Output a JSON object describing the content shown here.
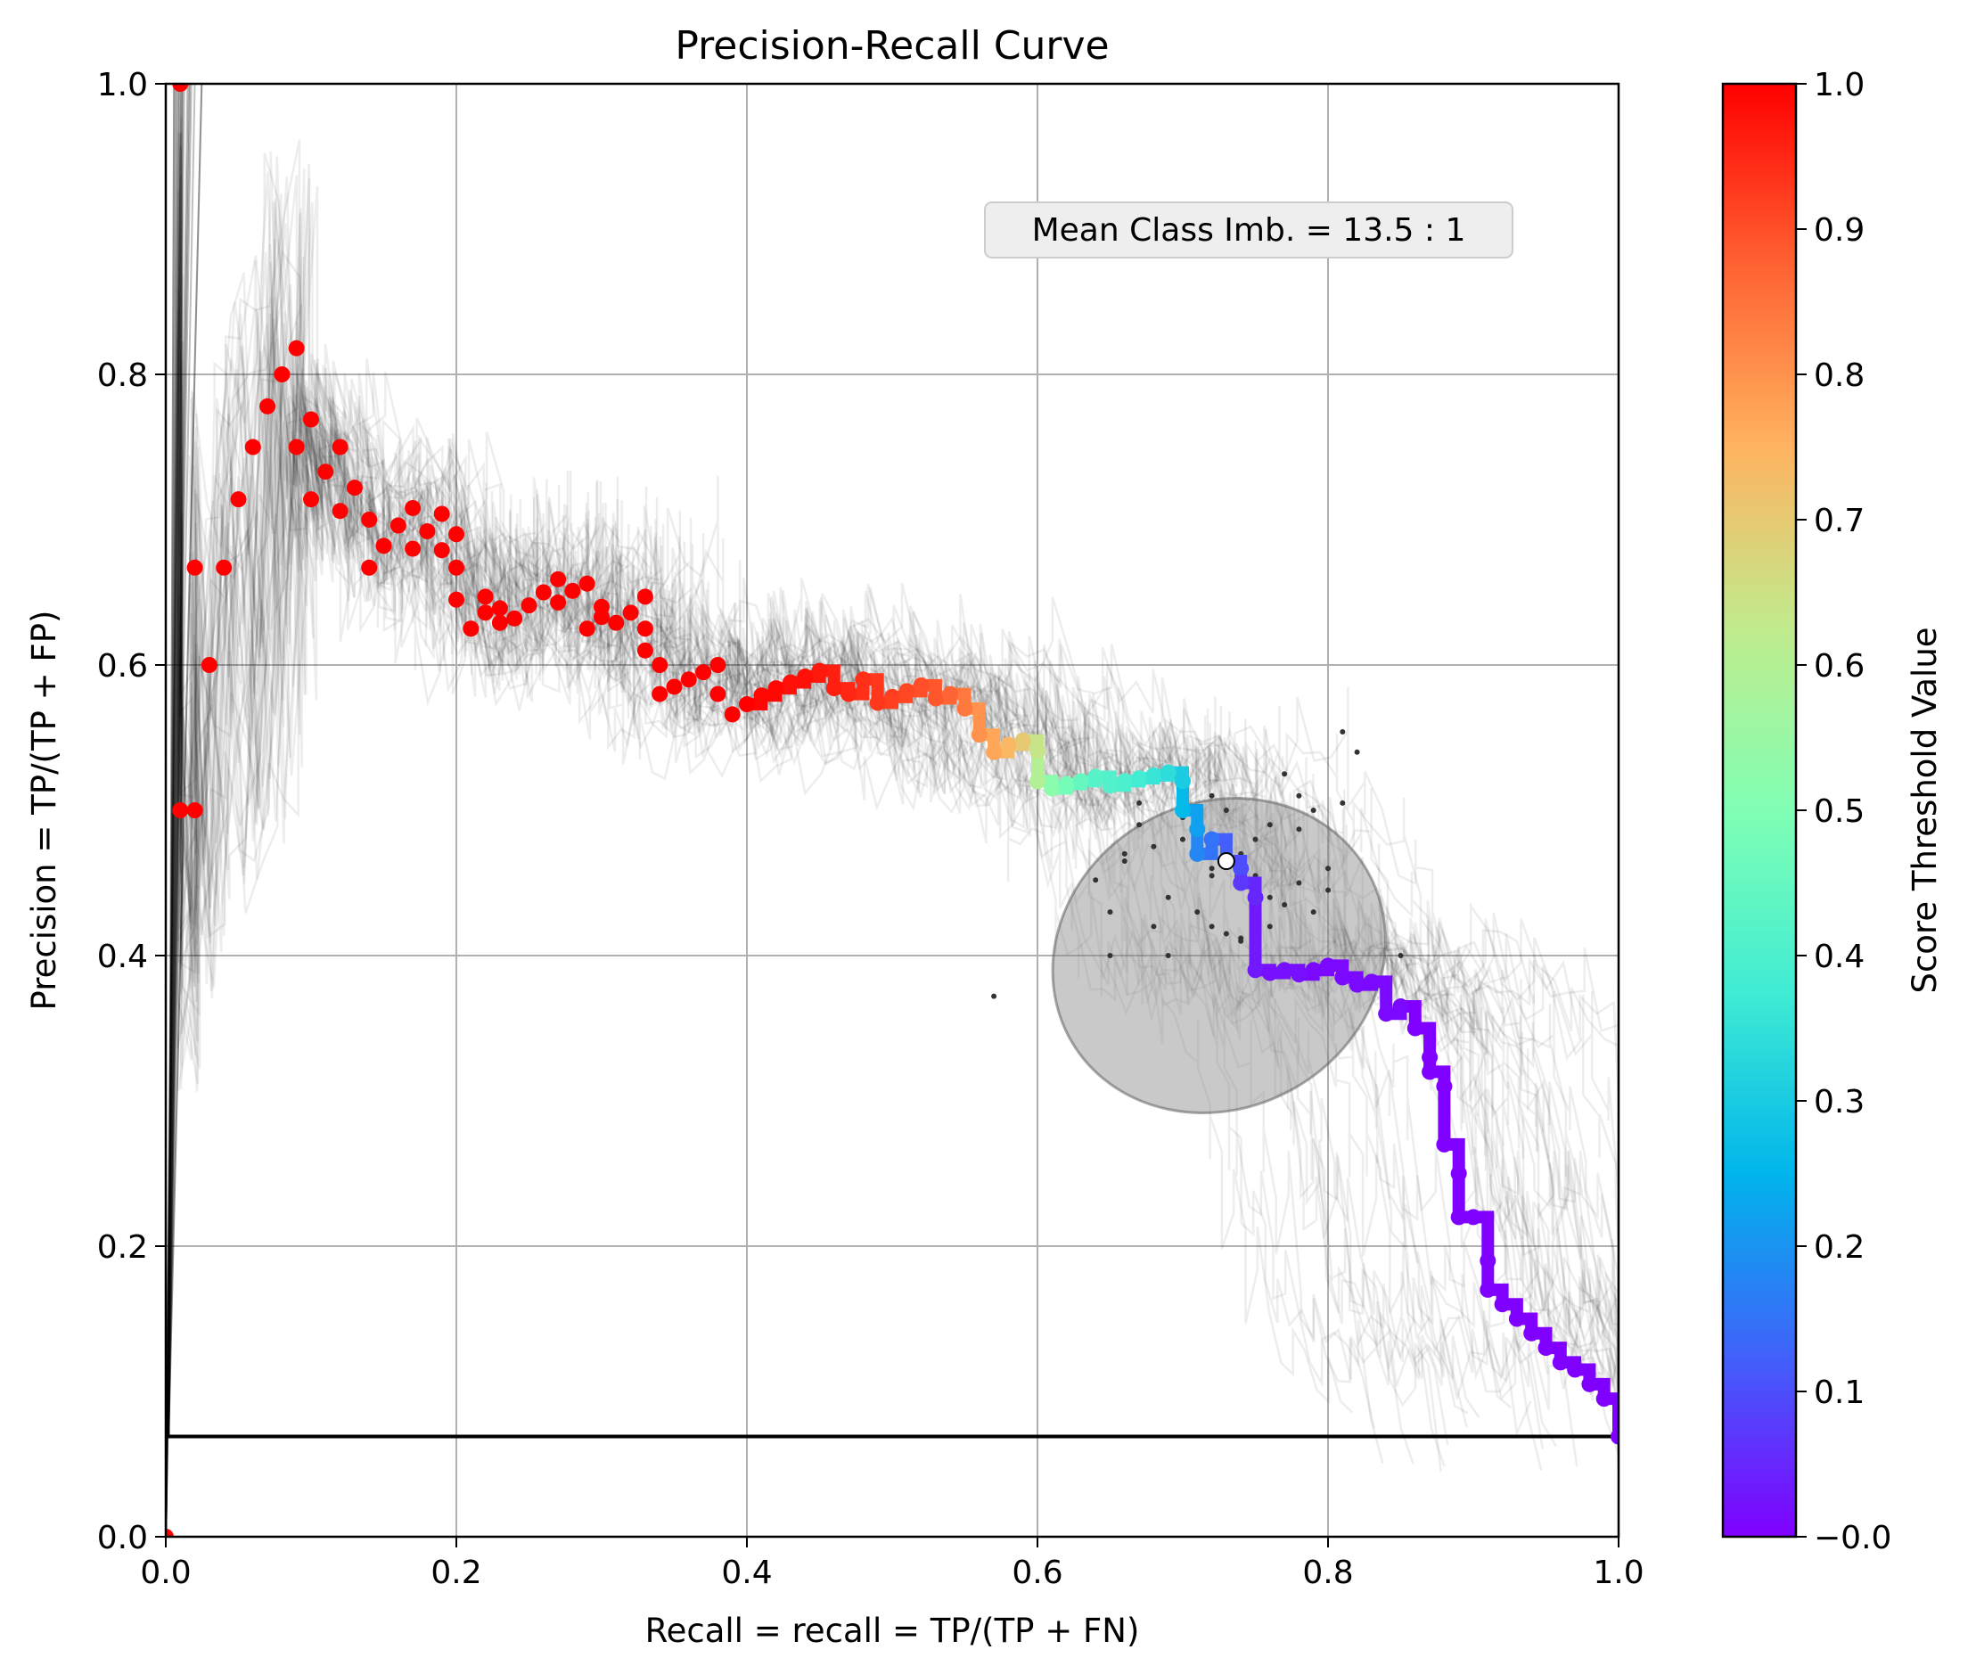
{
  "chart_data": {
    "type": "line",
    "title": "Precision-Recall Curve",
    "xlabel": "Recall = recall = TP/(TP + FN)",
    "ylabel": "Precision = TP/(TP + FP)",
    "xlim": [
      0.0,
      1.0
    ],
    "ylim": [
      0.0,
      1.0
    ],
    "grid": true,
    "x_ticks": [
      "0.0",
      "0.2",
      "0.4",
      "0.6",
      "0.8",
      "1.0"
    ],
    "y_ticks": [
      "0.0",
      "0.2",
      "0.4",
      "0.6",
      "0.8",
      "1.0"
    ],
    "annotation": "Mean Class Imb. = 13.5 : 1",
    "baseline_precision": 0.069,
    "colorbar": {
      "label": "Score Threshold Value",
      "colormap": "rainbow",
      "range": [
        0.0,
        1.0
      ],
      "ticks": [
        "−0.0",
        "0.1",
        "0.2",
        "0.3",
        "0.4",
        "0.5",
        "0.6",
        "0.7",
        "0.8",
        "0.9",
        "1.0"
      ],
      "colors": [
        "#8000ff",
        "#4062fa",
        "#00b5eb",
        "#40ecd4",
        "#80ffb4",
        "#c0eb8d",
        "#ffb360",
        "#ff6232",
        "#ff0000"
      ]
    },
    "main_curve": {
      "recall": [
        0.0,
        0.01,
        0.01,
        0.02,
        0.02,
        0.03,
        0.04,
        0.05,
        0.06,
        0.07,
        0.08,
        0.09,
        0.09,
        0.1,
        0.1,
        0.11,
        0.12,
        0.12,
        0.13,
        0.14,
        0.14,
        0.15,
        0.16,
        0.17,
        0.17,
        0.18,
        0.19,
        0.19,
        0.2,
        0.2,
        0.2,
        0.21,
        0.22,
        0.22,
        0.23,
        0.23,
        0.24,
        0.25,
        0.26,
        0.27,
        0.27,
        0.28,
        0.29,
        0.29,
        0.3,
        0.3,
        0.31,
        0.32,
        0.33,
        0.33,
        0.33,
        0.34,
        0.34,
        0.35,
        0.36,
        0.37,
        0.38,
        0.38,
        0.39,
        0.4,
        0.41,
        0.42,
        0.43,
        0.44,
        0.45,
        0.46,
        0.47,
        0.48,
        0.49,
        0.5,
        0.51,
        0.52,
        0.53,
        0.54,
        0.55,
        0.56,
        0.57,
        0.58,
        0.59,
        0.6,
        0.6,
        0.61,
        0.62,
        0.63,
        0.64,
        0.65,
        0.66,
        0.67,
        0.68,
        0.69,
        0.7,
        0.7,
        0.71,
        0.71,
        0.72,
        0.73,
        0.74,
        0.74,
        0.75,
        0.75,
        0.76,
        0.77,
        0.78,
        0.79,
        0.8,
        0.81,
        0.82,
        0.83,
        0.84,
        0.85,
        0.86,
        0.87,
        0.87,
        0.88,
        0.88,
        0.89,
        0.89,
        0.9,
        0.91,
        0.91,
        0.92,
        0.93,
        0.94,
        0.95,
        0.96,
        0.97,
        0.98,
        0.99,
        1.0
      ],
      "precision": [
        0.0,
        1.0,
        0.5,
        0.5,
        0.667,
        0.6,
        0.667,
        0.714,
        0.75,
        0.778,
        0.8,
        0.818,
        0.75,
        0.714,
        0.769,
        0.733,
        0.706,
        0.75,
        0.722,
        0.7,
        0.667,
        0.682,
        0.696,
        0.708,
        0.68,
        0.692,
        0.704,
        0.679,
        0.69,
        0.667,
        0.645,
        0.625,
        0.636,
        0.647,
        0.629,
        0.639,
        0.632,
        0.641,
        0.65,
        0.659,
        0.643,
        0.651,
        0.656,
        0.625,
        0.633,
        0.64,
        0.629,
        0.636,
        0.647,
        0.625,
        0.61,
        0.6,
        0.58,
        0.585,
        0.59,
        0.595,
        0.6,
        0.58,
        0.566,
        0.573,
        0.579,
        0.584,
        0.588,
        0.592,
        0.596,
        0.584,
        0.58,
        0.59,
        0.574,
        0.578,
        0.582,
        0.586,
        0.577,
        0.58,
        0.57,
        0.552,
        0.54,
        0.545,
        0.548,
        0.541,
        0.52,
        0.515,
        0.518,
        0.52,
        0.523,
        0.517,
        0.52,
        0.522,
        0.524,
        0.526,
        0.52,
        0.5,
        0.487,
        0.47,
        0.48,
        0.465,
        0.46,
        0.45,
        0.44,
        0.39,
        0.388,
        0.39,
        0.387,
        0.39,
        0.393,
        0.385,
        0.38,
        0.382,
        0.36,
        0.365,
        0.35,
        0.33,
        0.32,
        0.31,
        0.27,
        0.25,
        0.22,
        0.22,
        0.19,
        0.17,
        0.16,
        0.15,
        0.14,
        0.13,
        0.12,
        0.115,
        0.105,
        0.095,
        0.069
      ],
      "threshold": [
        1.0,
        1.0,
        1.0,
        1.0,
        1.0,
        1.0,
        1.0,
        1.0,
        1.0,
        1.0,
        1.0,
        1.0,
        1.0,
        1.0,
        1.0,
        1.0,
        1.0,
        1.0,
        1.0,
        1.0,
        1.0,
        1.0,
        1.0,
        1.0,
        1.0,
        1.0,
        1.0,
        1.0,
        1.0,
        1.0,
        1.0,
        1.0,
        1.0,
        1.0,
        1.0,
        1.0,
        1.0,
        1.0,
        1.0,
        1.0,
        1.0,
        1.0,
        1.0,
        1.0,
        1.0,
        1.0,
        1.0,
        1.0,
        1.0,
        1.0,
        1.0,
        1.0,
        1.0,
        1.0,
        1.0,
        1.0,
        1.0,
        1.0,
        1.0,
        1.0,
        0.99,
        0.99,
        0.98,
        0.98,
        0.97,
        0.96,
        0.95,
        0.94,
        0.93,
        0.92,
        0.91,
        0.9,
        0.89,
        0.87,
        0.84,
        0.8,
        0.77,
        0.74,
        0.7,
        0.64,
        0.6,
        0.52,
        0.48,
        0.45,
        0.42,
        0.41,
        0.4,
        0.38,
        0.36,
        0.34,
        0.3,
        0.26,
        0.22,
        0.18,
        0.15,
        0.12,
        0.1,
        0.07,
        0.05,
        0.03,
        0.02,
        0.02,
        0.02,
        0.01,
        0.01,
        0.01,
        0.01,
        0.01,
        0.01,
        0.01,
        0.0,
        0.0,
        0.0,
        0.0,
        0.0,
        0.0,
        0.0,
        0.0,
        0.0,
        0.0,
        0.0,
        0.0,
        0.0,
        0.0,
        0.0,
        0.0,
        0.0,
        0.0,
        0.0
      ]
    },
    "mean_point": {
      "recall": 0.73,
      "precision": 0.465
    },
    "confidence_ellipse": {
      "center_recall": 0.725,
      "center_precision": 0.4,
      "width": 0.235,
      "height": 0.21,
      "angle_deg": 30
    },
    "bootstrap_points": {
      "recall": [
        0.64,
        0.65,
        0.66,
        0.67,
        0.68,
        0.69,
        0.7,
        0.71,
        0.72,
        0.72,
        0.73,
        0.74,
        0.74,
        0.75,
        0.76,
        0.77,
        0.78,
        0.78,
        0.79,
        0.8,
        0.81,
        0.82,
        0.7,
        0.71,
        0.73,
        0.76,
        0.68,
        0.67,
        0.75,
        0.79,
        0.72,
        0.77,
        0.69,
        0.66,
        0.81,
        0.85,
        0.57,
        0.76,
        0.74,
        0.7,
        0.72,
        0.78,
        0.65,
        0.8
      ],
      "precision": [
        0.452,
        0.4,
        0.465,
        0.49,
        0.42,
        0.4,
        0.505,
        0.43,
        0.46,
        0.42,
        0.5,
        0.41,
        0.47,
        0.48,
        0.44,
        0.525,
        0.45,
        0.51,
        0.43,
        0.46,
        0.554,
        0.54,
        0.48,
        0.47,
        0.415,
        0.49,
        0.475,
        0.505,
        0.455,
        0.5,
        0.51,
        0.435,
        0.44,
        0.47,
        0.505,
        0.4,
        0.372,
        0.42,
        0.412,
        0.495,
        0.455,
        0.487,
        0.43,
        0.445
      ]
    }
  }
}
